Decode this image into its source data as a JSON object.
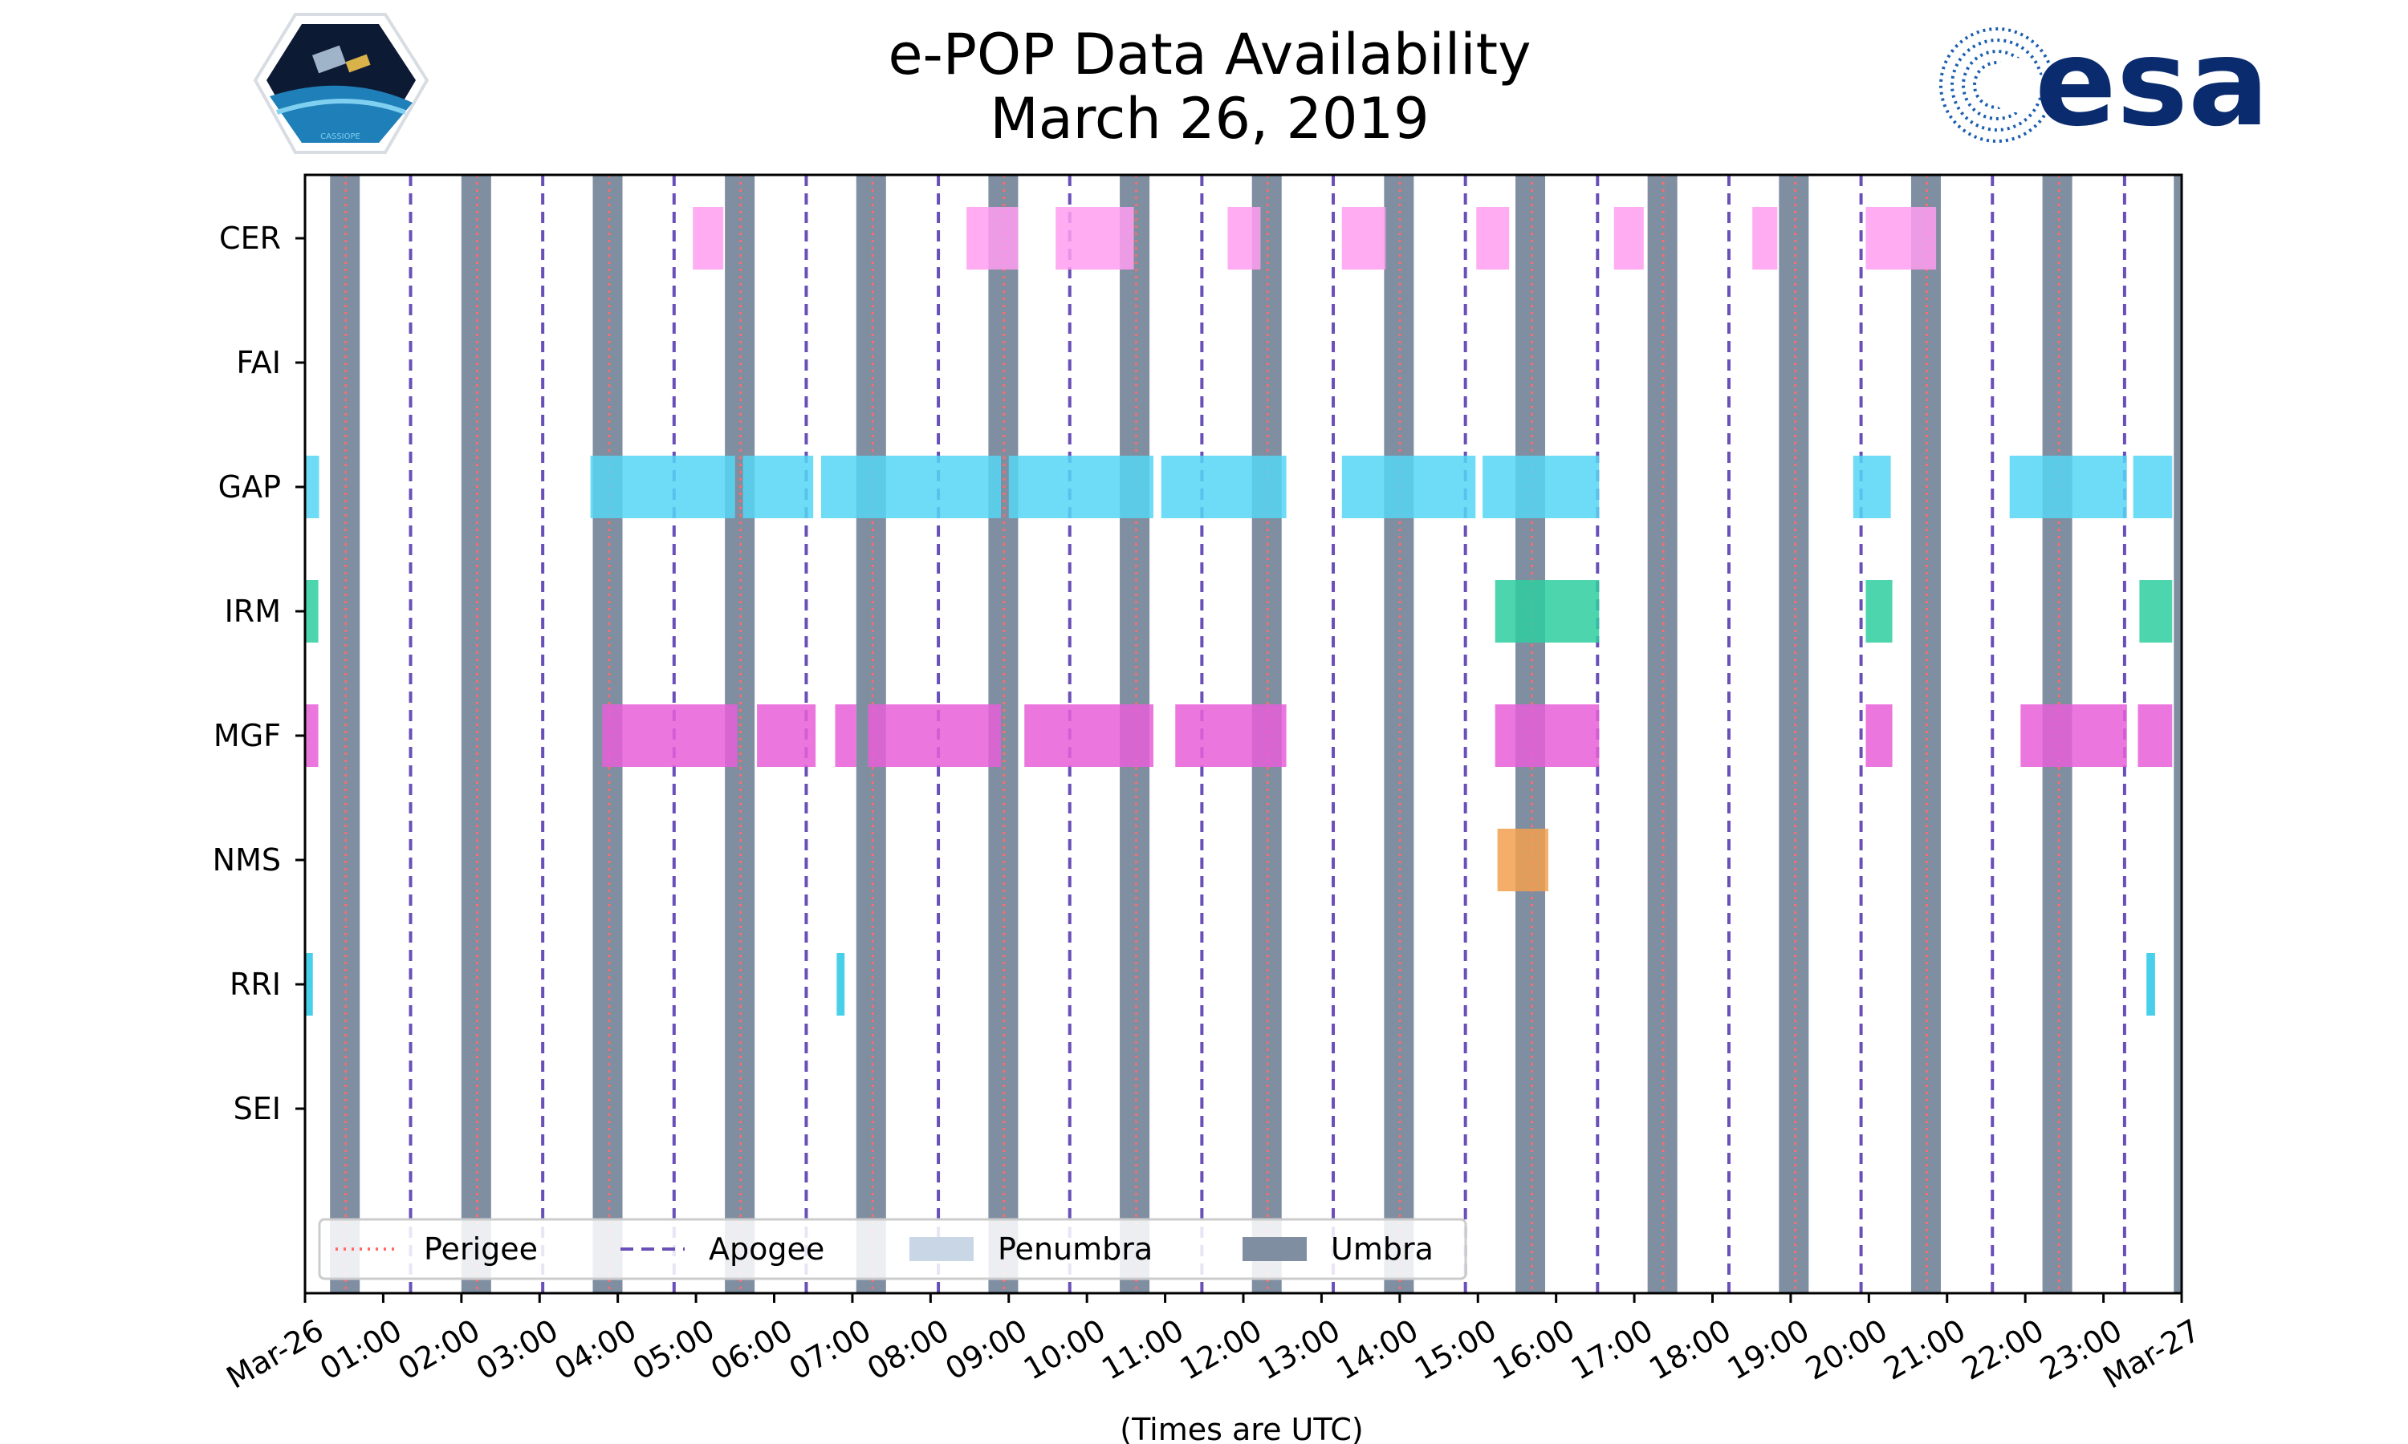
{
  "chart_data": {
    "type": "timeline",
    "title": [
      "e-POP Data Availability",
      "March 26, 2019"
    ],
    "xlabel": "(Times are UTC)",
    "xlim": [
      0,
      24
    ],
    "x_unit": "hours UTC",
    "x_tick_labels": [
      "Mar-26",
      "01:00",
      "02:00",
      "03:00",
      "04:00",
      "05:00",
      "06:00",
      "07:00",
      "08:00",
      "09:00",
      "10:00",
      "11:00",
      "12:00",
      "13:00",
      "14:00",
      "15:00",
      "16:00",
      "17:00",
      "18:00",
      "19:00",
      "20:00",
      "21:00",
      "22:00",
      "23:00",
      "Mar-27"
    ],
    "instruments": [
      "CER",
      "FAI",
      "GAP",
      "IRM",
      "MGF",
      "NMS",
      "RRI",
      "SEI"
    ],
    "perigee_times": [
      0.52,
      2.2,
      3.89,
      5.57,
      7.26,
      8.94,
      10.63,
      12.31,
      14.0,
      15.69,
      17.37,
      19.06,
      20.74,
      22.43
    ],
    "apogee_times": [
      1.35,
      3.04,
      4.72,
      6.41,
      8.1,
      9.78,
      11.47,
      13.15,
      14.84,
      16.53,
      18.21,
      19.9,
      21.58,
      23.27
    ],
    "umbra_intervals": [
      [
        0.32,
        0.7
      ],
      [
        2.0,
        2.38
      ],
      [
        3.68,
        4.06
      ],
      [
        5.37,
        5.75
      ],
      [
        7.05,
        7.43
      ],
      [
        8.74,
        9.12
      ],
      [
        10.42,
        10.8
      ],
      [
        12.11,
        12.49
      ],
      [
        13.8,
        14.18
      ],
      [
        15.48,
        15.86
      ],
      [
        17.17,
        17.55
      ],
      [
        18.85,
        19.23
      ],
      [
        20.54,
        20.92
      ],
      [
        22.22,
        22.6
      ],
      [
        23.9,
        24.0
      ]
    ],
    "penumbra_intervals": [],
    "series": [
      {
        "name": "CER",
        "color": "#ff9ef0",
        "intervals": [
          [
            4.96,
            5.35
          ],
          [
            8.46,
            9.12
          ],
          [
            9.6,
            10.6
          ],
          [
            11.8,
            12.22
          ],
          [
            13.26,
            13.82
          ],
          [
            14.98,
            15.4
          ],
          [
            16.74,
            17.12
          ],
          [
            18.51,
            18.83
          ],
          [
            19.96,
            20.86
          ]
        ]
      },
      {
        "name": "FAI",
        "color": "#ff9ef0",
        "intervals": []
      },
      {
        "name": "GAP",
        "color": "#55d6f5",
        "intervals": [
          [
            0.0,
            0.18
          ],
          [
            3.65,
            5.5
          ],
          [
            5.6,
            6.5
          ],
          [
            6.6,
            8.9
          ],
          [
            9.0,
            10.85
          ],
          [
            10.95,
            12.55
          ],
          [
            13.26,
            14.97
          ],
          [
            15.06,
            16.55
          ],
          [
            19.8,
            20.28
          ],
          [
            21.8,
            23.3
          ],
          [
            23.38,
            23.88
          ]
        ]
      },
      {
        "name": "IRM",
        "color": "#2ecfa0",
        "intervals": [
          [
            0.0,
            0.17
          ],
          [
            15.22,
            16.55
          ],
          [
            19.96,
            20.3
          ],
          [
            23.46,
            23.88
          ]
        ]
      },
      {
        "name": "MGF",
        "color": "#e85fd8",
        "intervals": [
          [
            0.0,
            0.17
          ],
          [
            3.8,
            5.53
          ],
          [
            5.78,
            6.53
          ],
          [
            6.78,
            7.05
          ],
          [
            7.2,
            8.9
          ],
          [
            9.2,
            10.85
          ],
          [
            11.13,
            12.55
          ],
          [
            15.22,
            16.55
          ],
          [
            19.96,
            20.3
          ],
          [
            21.94,
            23.3
          ],
          [
            23.44,
            23.88
          ]
        ]
      },
      {
        "name": "NMS",
        "color": "#f2a050",
        "intervals": [
          [
            15.25,
            15.9
          ]
        ]
      },
      {
        "name": "RRI",
        "color": "#28c8e6",
        "intervals": [
          [
            0.0,
            0.1
          ],
          [
            6.8,
            6.9
          ],
          [
            23.55,
            23.66
          ]
        ]
      },
      {
        "name": "SEI",
        "color": "#28c8e6",
        "intervals": []
      }
    ],
    "legend": {
      "placement": "lower-left",
      "entries": [
        {
          "label": "Perigee",
          "style": "dotted",
          "color": "#ff6b6b"
        },
        {
          "label": "Apogee",
          "style": "dashed",
          "color": "#6a4fb8"
        },
        {
          "label": "Penumbra",
          "style": "patch",
          "color": "#c9d6e6"
        },
        {
          "label": "Umbra",
          "style": "patch",
          "color": "#7f8ea0"
        }
      ]
    }
  },
  "logos": {
    "left": {
      "text": "CASSIOPE"
    },
    "right": {
      "text": "esa"
    }
  },
  "colors": {
    "umbra": "#7f8ea0",
    "penumbra": "#c9d6e6",
    "perigee": "#ff6b6b",
    "apogee": "#6a4fb8",
    "esa_blue": "#0a2b6e"
  }
}
